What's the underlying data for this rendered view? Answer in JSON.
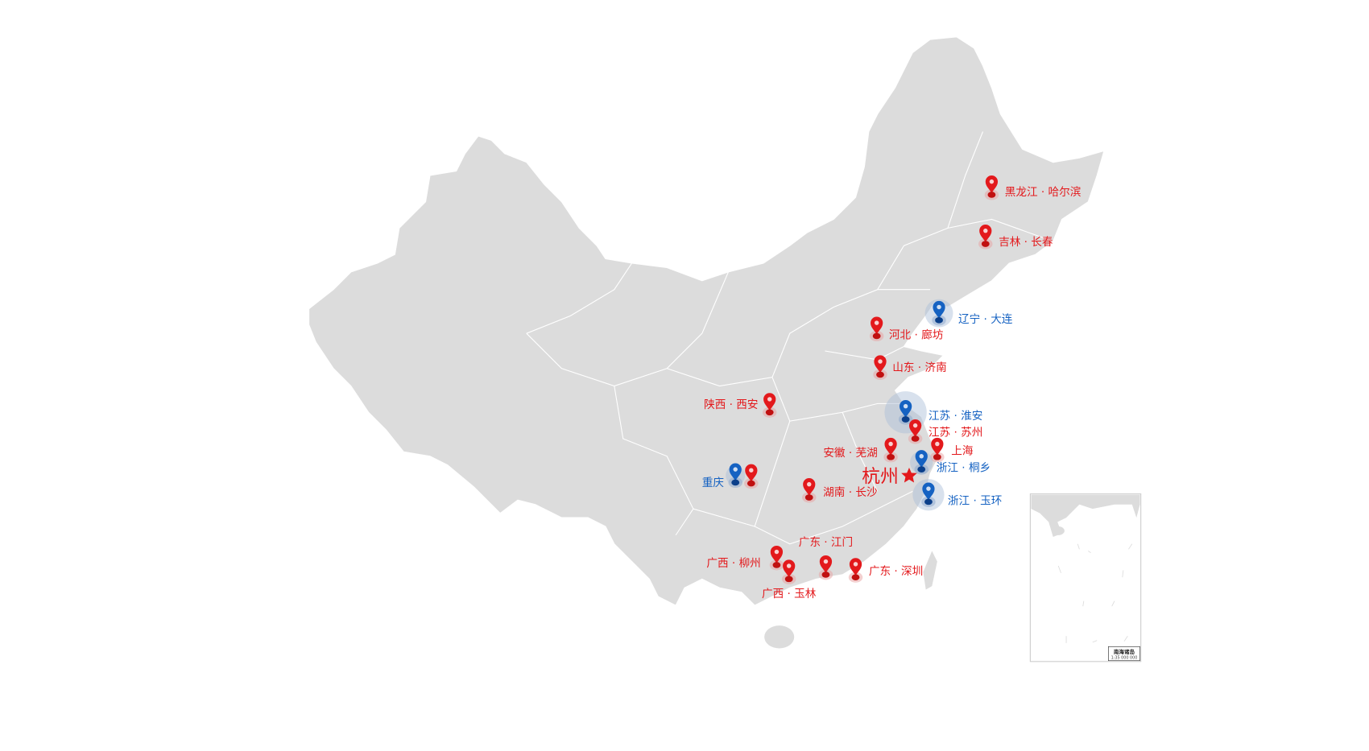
{
  "map": {
    "land_color": "#dcdcdc",
    "border_color": "#ffffff",
    "capital": {
      "label": "杭州",
      "icon": "star-icon",
      "color": "#e3191c"
    },
    "markers": [
      {
        "label": "黑龙江 · 哈尔滨",
        "type": "red"
      },
      {
        "label": "吉林 · 长春",
        "type": "red"
      },
      {
        "label": "辽宁 · 大连",
        "type": "blue"
      },
      {
        "label": "河北 · 廊坊",
        "type": "red"
      },
      {
        "label": "山东 · 济南",
        "type": "red"
      },
      {
        "label": "陕西 · 西安",
        "type": "red"
      },
      {
        "label": "江苏 · 淮安",
        "type": "blue"
      },
      {
        "label": "江苏 · 苏州",
        "type": "red"
      },
      {
        "label": "安徽 · 芜湖",
        "type": "red"
      },
      {
        "label": "上海",
        "type": "red"
      },
      {
        "label": "浙江 · 桐乡",
        "type": "blue"
      },
      {
        "label": "浙江 · 玉环",
        "type": "blue"
      },
      {
        "label": "重庆",
        "type": "blue"
      },
      {
        "label": "",
        "type": "red"
      },
      {
        "label": "湖南 · 长沙",
        "type": "red"
      },
      {
        "label": "广东 · 江门",
        "type": "red"
      },
      {
        "label": "广西 · 柳州",
        "type": "red"
      },
      {
        "label": "广西 · 玉林",
        "type": "red"
      },
      {
        "label": "广东 · 深圳",
        "type": "red"
      }
    ],
    "colors": {
      "red": "#e3191c",
      "blue": "#1562c2"
    },
    "inset": {
      "title": "南海诸岛",
      "scale": "1:35 000 000"
    }
  }
}
